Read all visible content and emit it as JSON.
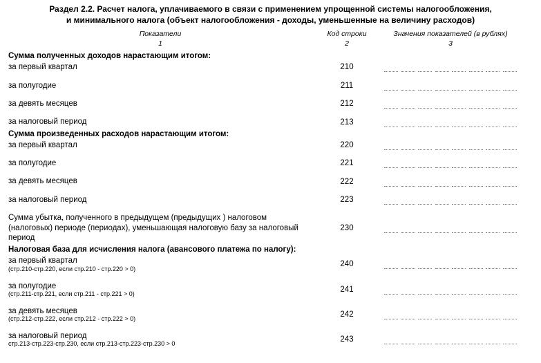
{
  "title_line1": "Раздел 2.2. Расчет налога, уплачиваемого в связи с применением упрощенной системы налогообложения,",
  "title_line2": "и минимального налога (объект налогообложения - доходы, уменьшенные на величину расходов)",
  "header": {
    "c1": "Показатели",
    "c2": "Код строки",
    "c3": "Значения показателей (в рублях)"
  },
  "header_sub": {
    "c1": "1",
    "c2": "2",
    "c3": "3"
  },
  "value_cells": 8,
  "sections": {
    "s1": "Сумма полученных доходов нарастающим итогом:",
    "s2": "Сумма произведенных расходов нарастающим итогом:",
    "s3": "Налоговая база для исчисления налога (авансового платежа по налогу):"
  },
  "rows": {
    "r210": {
      "label": "за первый квартал",
      "code": "210"
    },
    "r211": {
      "label": "за полугодие",
      "code": "211"
    },
    "r212": {
      "label": "за девять месяцев",
      "code": "212"
    },
    "r213": {
      "label": "за налоговый период",
      "code": "213"
    },
    "r220": {
      "label": "за первый квартал",
      "code": "220"
    },
    "r221": {
      "label": "за полугодие",
      "code": "221"
    },
    "r222": {
      "label": "за девять месяцев",
      "code": "222"
    },
    "r223": {
      "label": "за налоговый период",
      "code": "223"
    },
    "r230": {
      "label": "Сумма убытка, полученного в предыдущем (предыдущих ) налоговом (налоговых) периоде (периодах), уменьшающая налоговую базу за налоговый период",
      "code": "230"
    },
    "r240": {
      "label": "за первый квартал",
      "sub": "(стр.210-стр.220, если стр.210 - стр.220 > 0)",
      "code": "240"
    },
    "r241": {
      "label": "за полугодие",
      "sub": "(стр.211-стр.221, если стр.211 - стр.221 > 0)",
      "code": "241"
    },
    "r242": {
      "label": "за девять месяцев",
      "sub": "(стр.212-стр.222, если стр.212 - стр.222 > 0)",
      "code": "242"
    },
    "r243": {
      "label": "за налоговый период",
      "sub": "стр.213-стр.223-стр.230, если стр.213-стр.223-стр.230 > 0",
      "code": "243"
    }
  }
}
